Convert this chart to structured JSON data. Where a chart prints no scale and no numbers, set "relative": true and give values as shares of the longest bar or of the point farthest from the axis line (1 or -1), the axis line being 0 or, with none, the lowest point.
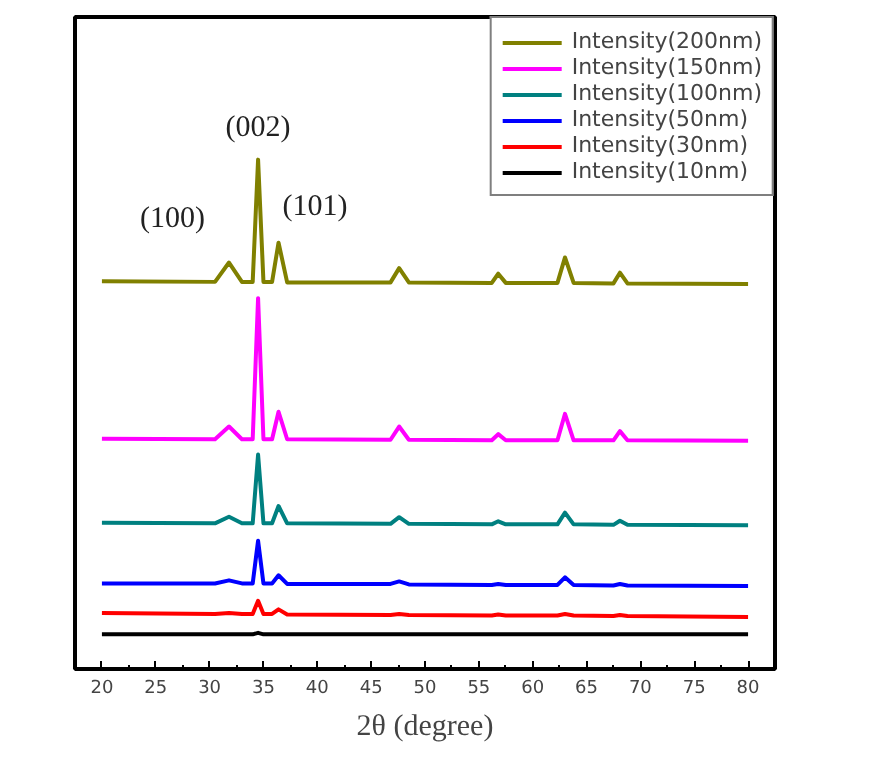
{
  "chart_data": {
    "type": "line",
    "relative": true,
    "xlabel": "2θ (degree)",
    "x": [
      20,
      30.5,
      31.8,
      33,
      34.0,
      34.5,
      35.0,
      35.8,
      36.4,
      37.2,
      46.8,
      47.6,
      48.5,
      56.2,
      56.8,
      57.5,
      62.3,
      63.0,
      63.8,
      67.5,
      68.1,
      68.8,
      80
    ],
    "xlim": [
      17.5,
      82.5
    ],
    "xticks": [
      20,
      25,
      30,
      35,
      40,
      45,
      50,
      55,
      60,
      65,
      70,
      75,
      80
    ],
    "tick_labels": "x",
    "grid": false,
    "legend": "top right",
    "series": [
      {
        "name": "Intensity(200nm)",
        "color": "#808000",
        "values": [
          0.761,
          0.76,
          0.798,
          0.76,
          0.76,
          1.0,
          0.76,
          0.76,
          0.837,
          0.759,
          0.759,
          0.787,
          0.759,
          0.758,
          0.776,
          0.758,
          0.758,
          0.808,
          0.758,
          0.757,
          0.778,
          0.757,
          0.756
        ]
      },
      {
        "name": "Intensity(150nm)",
        "color": "#ff00ff",
        "values": [
          0.452,
          0.451,
          0.476,
          0.451,
          0.451,
          0.728,
          0.451,
          0.451,
          0.505,
          0.451,
          0.45,
          0.476,
          0.45,
          0.449,
          0.461,
          0.449,
          0.449,
          0.501,
          0.449,
          0.449,
          0.467,
          0.449,
          0.448
        ]
      },
      {
        "name": "Intensity(100nm)",
        "color": "#008080",
        "values": [
          0.287,
          0.286,
          0.299,
          0.286,
          0.286,
          0.421,
          0.286,
          0.286,
          0.32,
          0.286,
          0.285,
          0.298,
          0.285,
          0.284,
          0.29,
          0.284,
          0.284,
          0.307,
          0.284,
          0.283,
          0.291,
          0.283,
          0.282
        ]
      },
      {
        "name": "Intensity(50nm)",
        "color": "#0000ff",
        "values": [
          0.168,
          0.168,
          0.174,
          0.168,
          0.168,
          0.252,
          0.168,
          0.168,
          0.184,
          0.167,
          0.167,
          0.172,
          0.166,
          0.165,
          0.167,
          0.165,
          0.165,
          0.18,
          0.165,
          0.164,
          0.167,
          0.164,
          0.163
        ]
      },
      {
        "name": "Intensity(30nm)",
        "color": "#ff0000",
        "values": [
          0.11,
          0.108,
          0.11,
          0.108,
          0.108,
          0.134,
          0.108,
          0.108,
          0.117,
          0.107,
          0.106,
          0.108,
          0.106,
          0.105,
          0.107,
          0.105,
          0.105,
          0.108,
          0.105,
          0.104,
          0.106,
          0.104,
          0.102
        ]
      },
      {
        "name": "Intensity(10nm)",
        "color": "#000000",
        "values": [
          0.068,
          0.068,
          0.068,
          0.068,
          0.068,
          0.071,
          0.068,
          0.068,
          0.068,
          0.068,
          0.068,
          0.068,
          0.068,
          0.068,
          0.068,
          0.068,
          0.068,
          0.068,
          0.068,
          0.068,
          0.068,
          0.068,
          0.068
        ]
      }
    ],
    "annotations": [
      {
        "text": "(100)",
        "x": 31.8,
        "y": 0.798
      },
      {
        "text": "(002)",
        "x": 34.5,
        "y": 1.0
      },
      {
        "text": "(101)",
        "x": 36.4,
        "y": 0.837
      }
    ]
  }
}
